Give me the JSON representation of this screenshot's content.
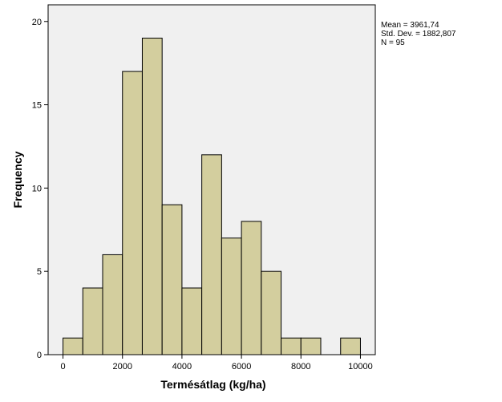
{
  "chart_data": {
    "type": "bar",
    "xlabel": "Termésátlag (kg/ha)",
    "ylabel": "Frequency",
    "xlim": [
      -500,
      10500
    ],
    "ylim": [
      0,
      21
    ],
    "xticks": [
      0,
      2000,
      4000,
      6000,
      8000,
      10000
    ],
    "yticks": [
      0,
      5,
      10,
      15,
      20
    ],
    "bin_width": 666.67,
    "bins": [
      {
        "start": 0,
        "end": 666.67,
        "count": 1
      },
      {
        "start": 666.67,
        "end": 1333.33,
        "count": 4
      },
      {
        "start": 1333.33,
        "end": 2000,
        "count": 6
      },
      {
        "start": 2000,
        "end": 2666.67,
        "count": 17
      },
      {
        "start": 2666.67,
        "end": 3333.33,
        "count": 19
      },
      {
        "start": 3333.33,
        "end": 4000,
        "count": 9
      },
      {
        "start": 4000,
        "end": 4666.67,
        "count": 4
      },
      {
        "start": 4666.67,
        "end": 5333.33,
        "count": 12
      },
      {
        "start": 5333.33,
        "end": 6000,
        "count": 7
      },
      {
        "start": 6000,
        "end": 6666.67,
        "count": 8
      },
      {
        "start": 6666.67,
        "end": 7333.33,
        "count": 5
      },
      {
        "start": 7333.33,
        "end": 8000,
        "count": 1
      },
      {
        "start": 8000,
        "end": 8666.67,
        "count": 1
      },
      {
        "start": 9333.33,
        "end": 10000,
        "count": 1
      }
    ],
    "grid": false,
    "bar_color": "#d3ce9e",
    "plot_background": "#f0f0f0",
    "stats_position": "top-right"
  },
  "stats": {
    "mean": "Mean = 3961,74",
    "std": "Std. Dev. = 1882,807",
    "n": "N = 95"
  }
}
